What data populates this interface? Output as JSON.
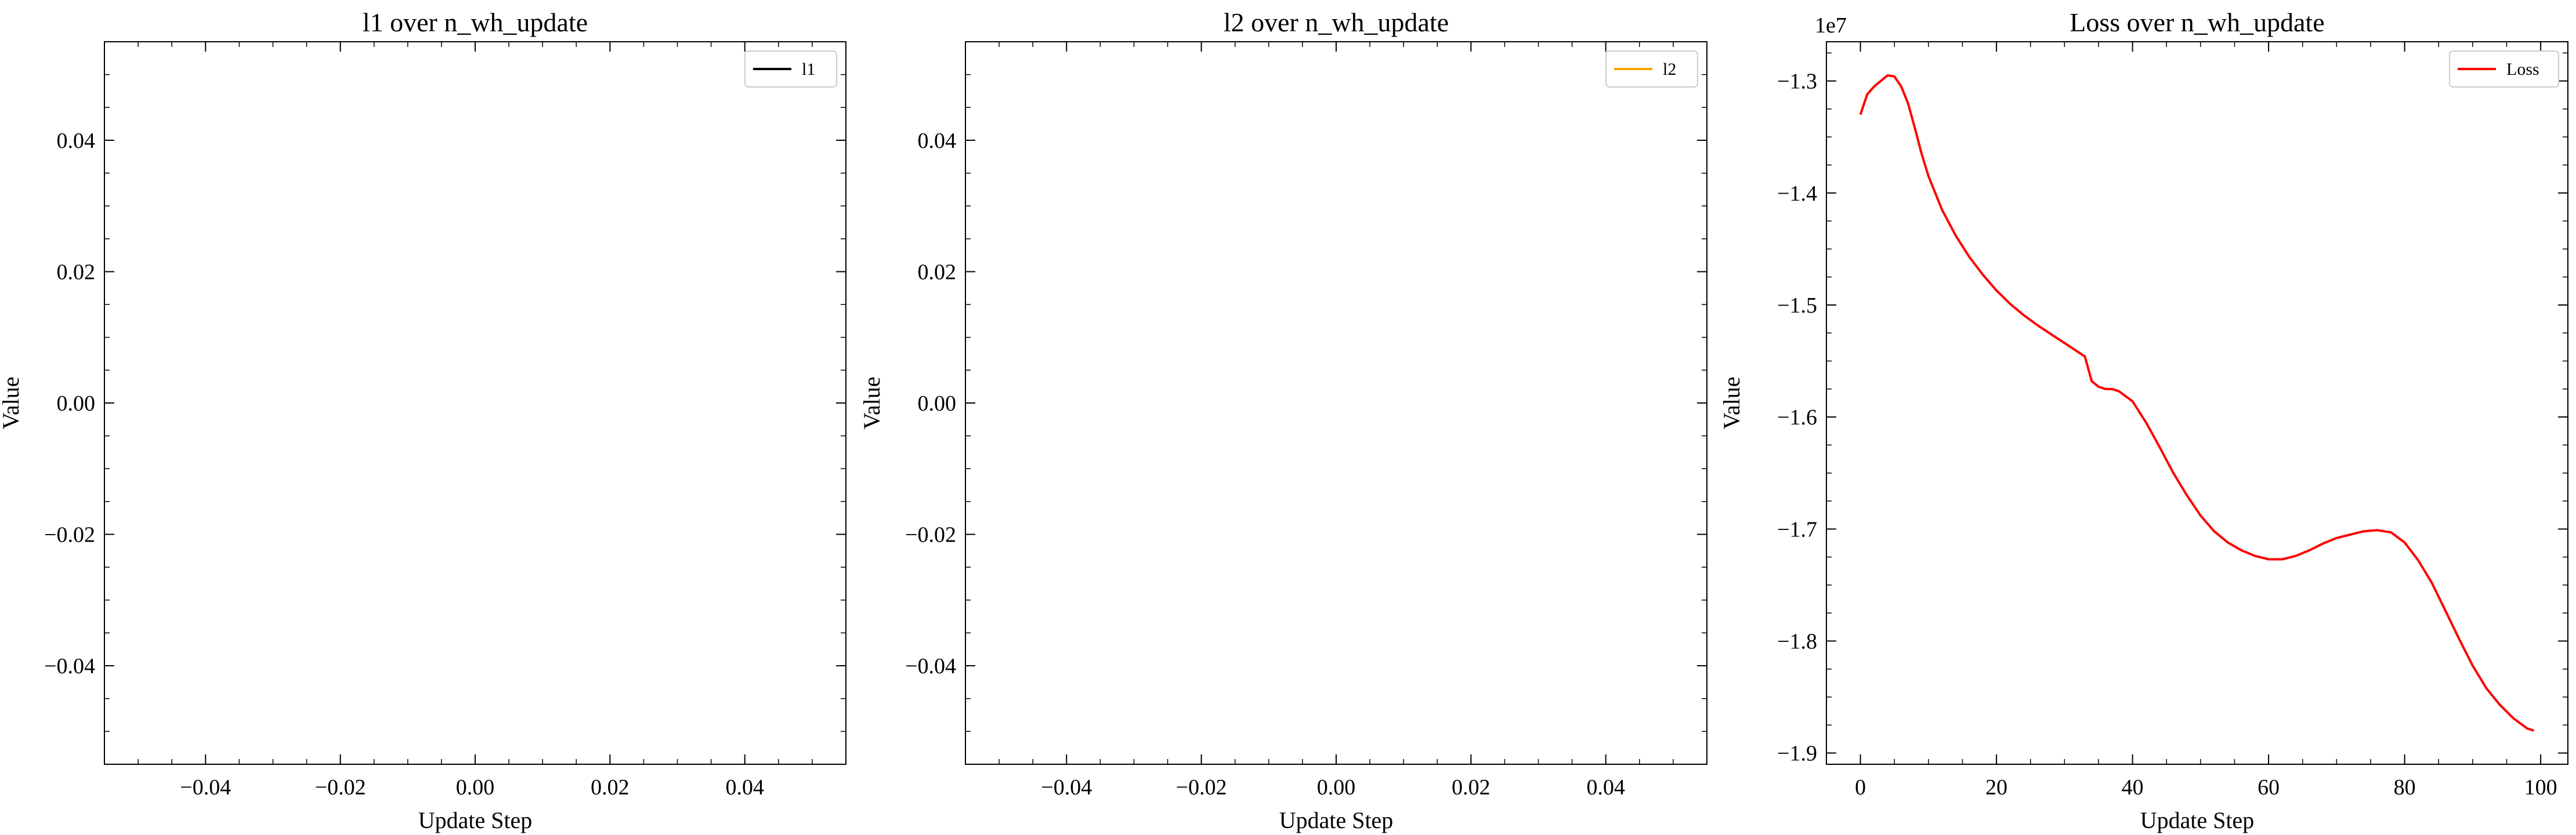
{
  "chart_data": [
    {
      "type": "line",
      "title": "l1 over n_wh_update",
      "xlabel": "Update Step",
      "ylabel": "Value",
      "xlim": [
        -0.055,
        0.055
      ],
      "ylim": [
        -0.055,
        0.055
      ],
      "xticks": [
        -0.04,
        -0.02,
        0.0,
        0.02,
        0.04
      ],
      "xtick_labels": [
        "−0.04",
        "−0.02",
        "0.00",
        "0.02",
        "0.04"
      ],
      "yticks": [
        -0.04,
        -0.02,
        0.0,
        0.02,
        0.04
      ],
      "ytick_labels": [
        "−0.04",
        "−0.02",
        "0.00",
        "0.02",
        "0.04"
      ],
      "legend_position": "top-right",
      "offset_text": "",
      "series": [
        {
          "name": "l1",
          "color": "#000000",
          "x": [],
          "y": []
        }
      ]
    },
    {
      "type": "line",
      "title": "l2 over n_wh_update",
      "xlabel": "Update Step",
      "ylabel": "Value",
      "xlim": [
        -0.055,
        0.055
      ],
      "ylim": [
        -0.055,
        0.055
      ],
      "xticks": [
        -0.04,
        -0.02,
        0.0,
        0.02,
        0.04
      ],
      "xtick_labels": [
        "−0.04",
        "−0.02",
        "0.00",
        "0.02",
        "0.04"
      ],
      "yticks": [
        -0.04,
        -0.02,
        0.0,
        0.02,
        0.04
      ],
      "ytick_labels": [
        "−0.04",
        "−0.02",
        "0.00",
        "0.02",
        "0.04"
      ],
      "legend_position": "top-right",
      "offset_text": "",
      "series": [
        {
          "name": "l2",
          "color": "#FFA500",
          "x": [],
          "y": []
        }
      ]
    },
    {
      "type": "line",
      "title": "Loss over n_wh_update",
      "xlabel": "Update Step",
      "ylabel": "Value",
      "xlim": [
        -5,
        104
      ],
      "ylim": [
        -19100000,
        -12650000
      ],
      "xticks": [
        0,
        20,
        40,
        60,
        80,
        100
      ],
      "xtick_labels": [
        "0",
        "20",
        "40",
        "60",
        "80",
        "100"
      ],
      "yticks": [
        -13000000,
        -14000000,
        -15000000,
        -16000000,
        -17000000,
        -18000000,
        -19000000
      ],
      "ytick_labels": [
        "−1.3",
        "−1.4",
        "−1.5",
        "−1.6",
        "−1.7",
        "−1.8",
        "−1.9"
      ],
      "legend_position": "top-right",
      "offset_text": "1e7",
      "series": [
        {
          "name": "Loss",
          "color": "#FF0000",
          "x": [
            0,
            1,
            2,
            3,
            4,
            5,
            6,
            7,
            8,
            9,
            10,
            12,
            14,
            16,
            18,
            20,
            22,
            24,
            26,
            28,
            30,
            32,
            33,
            34,
            35,
            36,
            37,
            38,
            40,
            42,
            44,
            46,
            48,
            50,
            52,
            54,
            56,
            58,
            60,
            62,
            64,
            66,
            68,
            70,
            72,
            74,
            76,
            78,
            80,
            82,
            84,
            86,
            88,
            90,
            92,
            94,
            96,
            98,
            99
          ],
          "y": [
            -13300000,
            -13120000,
            -13050000,
            -13000000,
            -12950000,
            -12960000,
            -13050000,
            -13200000,
            -13420000,
            -13650000,
            -13850000,
            -14150000,
            -14380000,
            -14570000,
            -14730000,
            -14870000,
            -14990000,
            -15090000,
            -15180000,
            -15260000,
            -15340000,
            -15420000,
            -15460000,
            -15680000,
            -15730000,
            -15750000,
            -15750000,
            -15770000,
            -15860000,
            -16050000,
            -16270000,
            -16500000,
            -16700000,
            -16880000,
            -17020000,
            -17120000,
            -17190000,
            -17240000,
            -17270000,
            -17270000,
            -17240000,
            -17190000,
            -17130000,
            -17080000,
            -17050000,
            -17020000,
            -17010000,
            -17030000,
            -17120000,
            -17280000,
            -17480000,
            -17730000,
            -17980000,
            -18220000,
            -18420000,
            -18570000,
            -18690000,
            -18780000,
            -18800000
          ]
        }
      ]
    }
  ]
}
